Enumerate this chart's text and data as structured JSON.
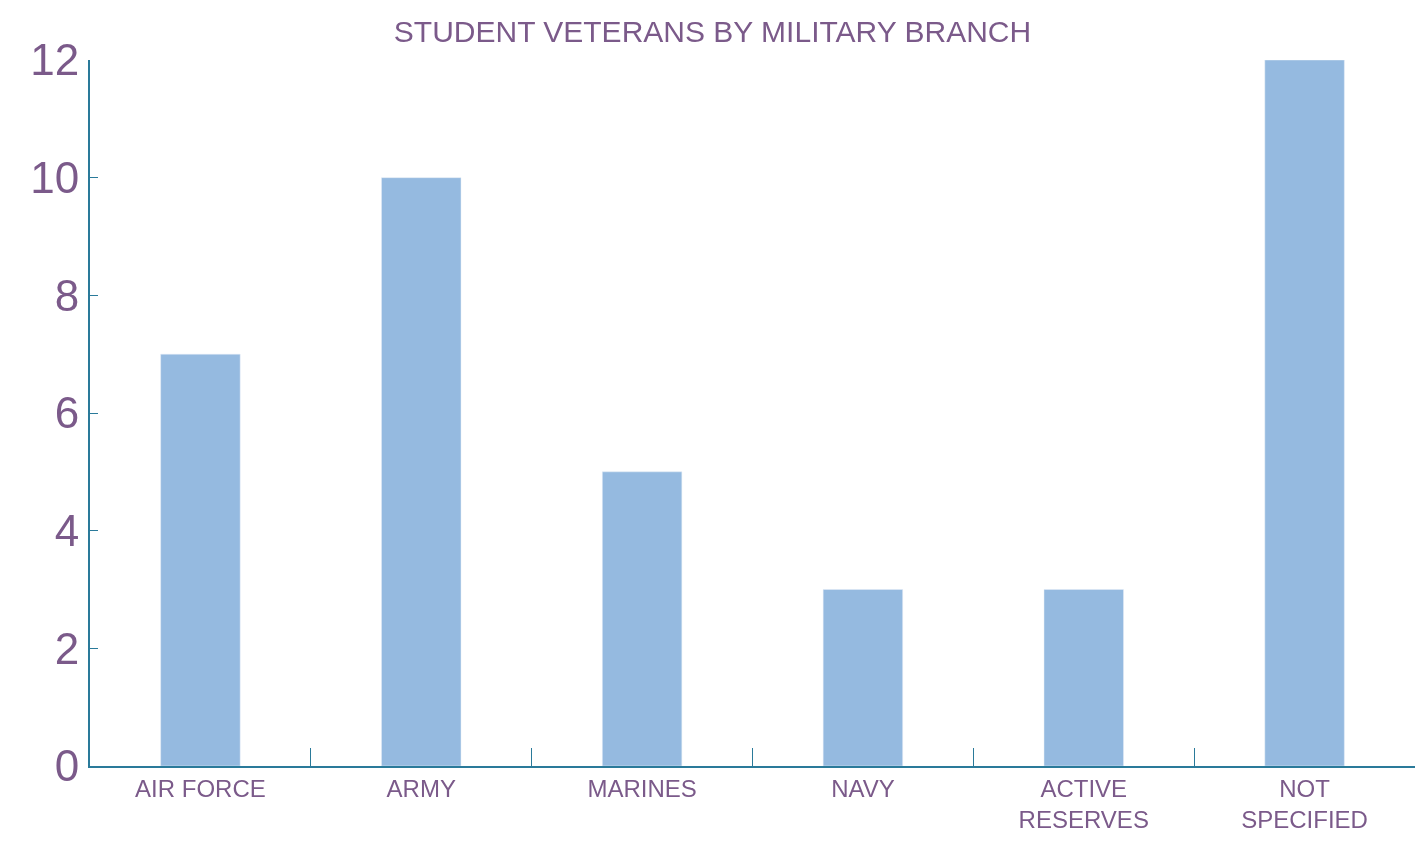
{
  "chart_data": {
    "type": "bar",
    "title": "STUDENT VETERANS BY MILITARY BRANCH",
    "categories": [
      "AIR FORCE",
      "ARMY",
      "MARINES",
      "NAVY",
      "ACTIVE RESERVES",
      "NOT SPECIFIED"
    ],
    "values": [
      7,
      10,
      5,
      3,
      3,
      12
    ],
    "color": "#95bae0",
    "ylim": [
      0,
      12
    ],
    "yticks": [
      0,
      2,
      4,
      6,
      8,
      10,
      12
    ]
  }
}
